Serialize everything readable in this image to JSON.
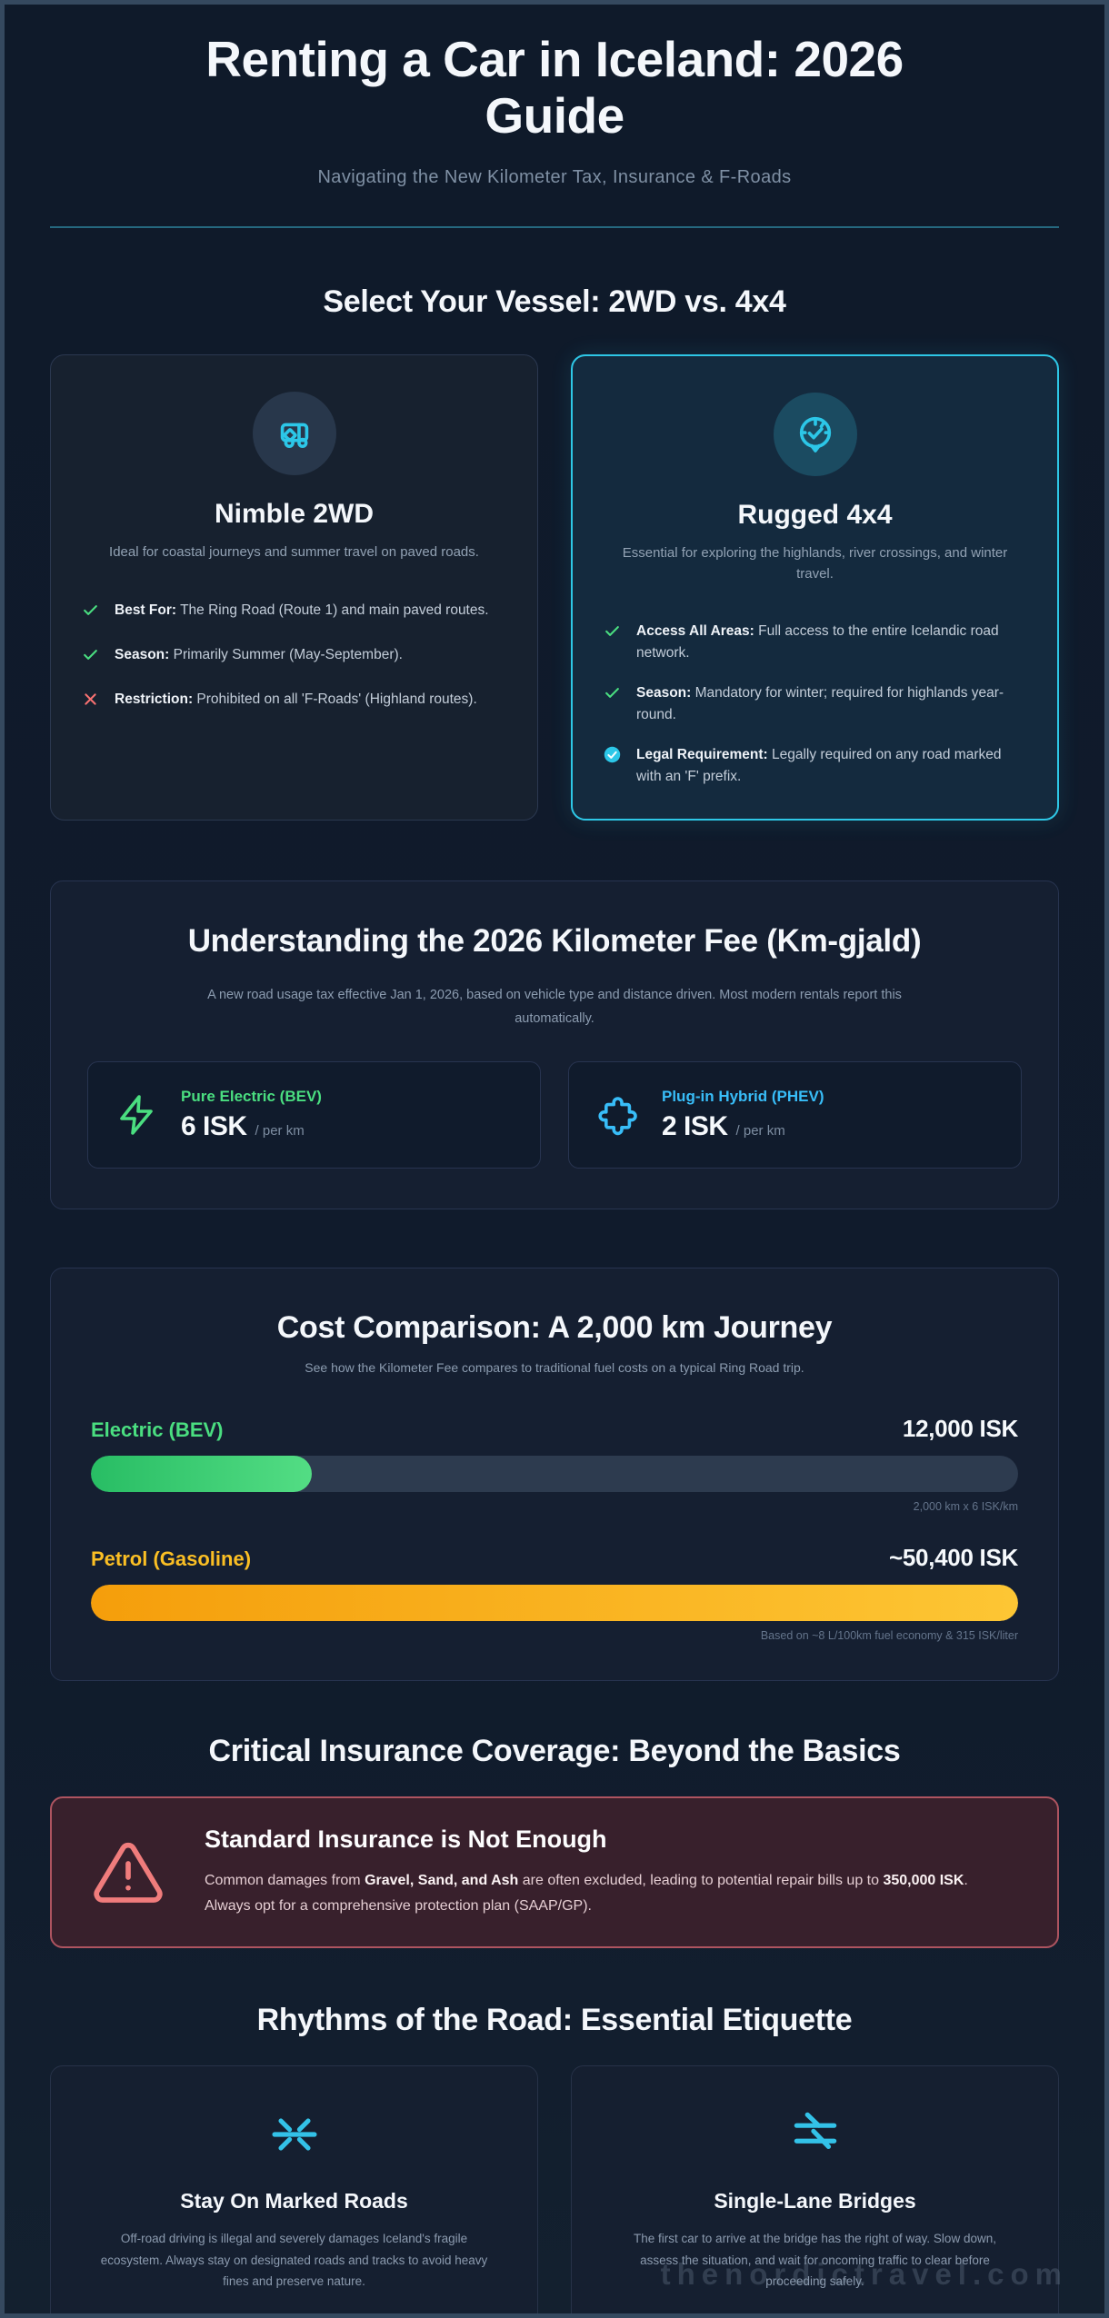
{
  "header": {
    "title": "Renting a Car in Iceland: 2026 Guide",
    "subtitle": "Navigating the New Kilometer Tax, Insurance & F-Roads"
  },
  "vessel": {
    "heading": "Select Your Vessel: 2WD vs. 4x4",
    "card_2wd": {
      "icon": "truck-icon",
      "title": "Nimble 2WD",
      "description": "Ideal for coastal journeys and summer travel on paved roads.",
      "items": [
        {
          "icon": "check-icon",
          "bold": "Best For:",
          "text": " The Ring Road (Route 1) and main paved routes."
        },
        {
          "icon": "check-icon",
          "bold": "Season:",
          "text": " Primarily Summer (May-September)."
        },
        {
          "icon": "cross-icon",
          "bold": "Restriction:",
          "text": " Prohibited on all 'F-Roads' (Highland routes)."
        }
      ]
    },
    "card_4x4": {
      "icon": "compass-check-icon",
      "title": "Rugged 4x4",
      "description": "Essential for exploring the highlands, river crossings, and winter travel.",
      "items": [
        {
          "icon": "check-icon",
          "bold": "Access All Areas:",
          "text": " Full access to the entire Icelandic road network."
        },
        {
          "icon": "check-icon",
          "bold": "Season:",
          "text": " Mandatory for winter; required for highlands year-round."
        },
        {
          "icon": "badge-check-icon",
          "bold": "Legal Requirement:",
          "text": " Legally required on any road marked with an 'F' prefix."
        }
      ]
    }
  },
  "km_fee": {
    "heading": "Understanding the 2026 Kilometer Fee (Km-gjald)",
    "description": "A new road usage tax effective Jan 1, 2026, based on vehicle type and distance driven. Most modern rentals report this automatically.",
    "rates": [
      {
        "icon": "zap-icon",
        "label": "Pure Electric (BEV)",
        "value": "6 ISK",
        "unit": "/ per km",
        "accent": "#4ade80"
      },
      {
        "icon": "puzzle-icon",
        "label": "Plug-in Hybrid (PHEV)",
        "value": "2 ISK",
        "unit": "/ per km",
        "accent": "#38bdf8"
      }
    ]
  },
  "cost": {
    "heading": "Cost Comparison: A 2,000 km Journey",
    "subtitle": "See how the Kilometer Fee compares to traditional fuel costs on a typical Ring Road trip.",
    "bars": [
      {
        "label": "Electric (BEV)",
        "amount": "12,000 ISK",
        "caption": "2,000 km x 6 ISK/km",
        "percent": 23.8,
        "color": "#4ade80"
      },
      {
        "label": "Petrol (Gasoline)",
        "amount": "~50,400 ISK",
        "caption": "Based on ~8 L/100km fuel economy & 315 ISK/liter",
        "percent": 100,
        "color": "#fbbf24"
      }
    ]
  },
  "insurance": {
    "heading": "Critical Insurance Coverage: Beyond the Basics",
    "alert": {
      "title": "Standard Insurance is Not Enough",
      "body": {
        "p1": "Common damages from ",
        "b1": "Gravel, Sand, and Ash",
        "p2": " are often excluded, leading to potential repair bills up to ",
        "b2": "350,000 ISK",
        "p3": ". Always opt for a comprehensive protection plan (SAAP/GP)."
      }
    }
  },
  "etiquette": {
    "heading": "Rhythms of the Road: Essential Etiquette",
    "cards": [
      {
        "icon": "sparkle-icon",
        "title": "Stay On Marked Roads",
        "text": "Off-road driving is illegal and severely damages Iceland's fragile ecosystem. Always stay on designated roads and tracks to avoid heavy fines and preserve nature."
      },
      {
        "icon": "bridge-icon",
        "title": "Single-Lane Bridges",
        "text": "The first car to arrive at the bridge has the right of way. Slow down, assess the situation, and wait for oncoming traffic to clear before proceeding safely."
      }
    ]
  },
  "watermark": "thenordictravel.com"
}
